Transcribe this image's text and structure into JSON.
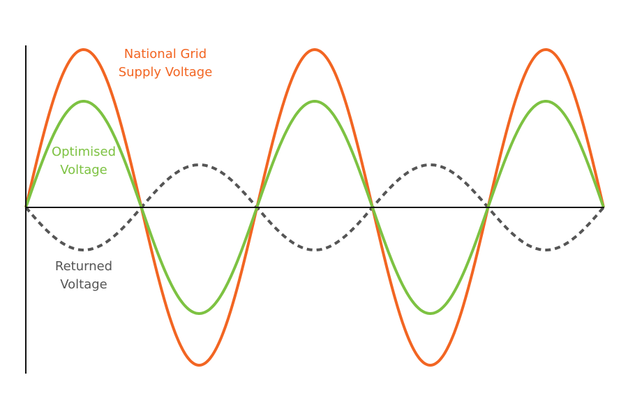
{
  "labels": [
    {
      "lines": [
        "National Grid",
        "Supply Voltage"
      ]
    },
    {
      "lines": [
        "Optimised",
        "Voltage"
      ]
    },
    {
      "lines": [
        "Returned",
        "Voltage"
      ]
    }
  ]
}
